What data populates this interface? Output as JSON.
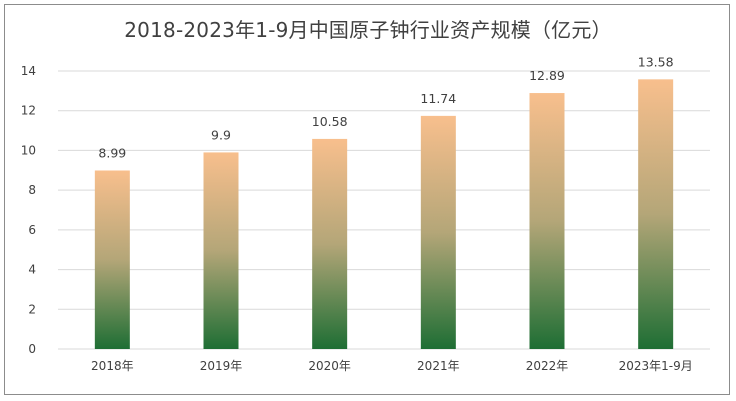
{
  "chart_data": {
    "type": "bar",
    "title": "2018-2023年1-9月中国原子钟行业资产规模（亿元）",
    "categories": [
      "2018年",
      "2019年",
      "2020年",
      "2021年",
      "2022年",
      "2023年1-9月"
    ],
    "values": [
      8.99,
      9.9,
      10.58,
      11.74,
      12.89,
      13.58
    ],
    "value_labels": [
      "8.99",
      "9.9",
      "10.58",
      "11.74",
      "12.89",
      "13.58"
    ],
    "ylim": [
      0,
      14
    ],
    "yticks": [
      0,
      2,
      4,
      6,
      8,
      10,
      12,
      14
    ],
    "xlabel": "",
    "ylabel": "",
    "grid": true,
    "legend": "none",
    "colors": {
      "bar_top": "#f8bf8d",
      "bar_mid": "#b4a678",
      "bar_bottom": "#1e6e34",
      "grid": "#d9d9d9",
      "text": "#404040"
    }
  }
}
